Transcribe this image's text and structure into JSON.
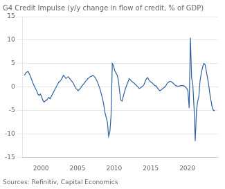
{
  "chart_data": {
    "type": "line",
    "title": "G4 Credit Impulse (y/y change in flow of credit, % of GDP)",
    "annotations": [
      "Sources: Refinitiv, Capital Economics"
    ],
    "color": "#3060A0",
    "grid": "y",
    "xlim": [
      1997.5,
      2024.2
    ],
    "xticks": [
      2000,
      2005,
      2010,
      2015,
      2020
    ],
    "ylim": [
      -15,
      15
    ],
    "yticks": [
      -15,
      -10,
      -5,
      0,
      5,
      10,
      15
    ],
    "x": [
      1997.75,
      1997.92,
      1998.08,
      1998.25,
      1998.42,
      1998.58,
      1998.75,
      1998.92,
      1999.08,
      1999.25,
      1999.42,
      1999.58,
      1999.75,
      1999.92,
      2000.08,
      2000.25,
      2000.42,
      2000.58,
      2000.75,
      2000.92,
      2001.08,
      2001.25,
      2001.42,
      2001.58,
      2001.75,
      2001.92,
      2002.08,
      2002.25,
      2002.42,
      2002.58,
      2002.75,
      2002.92,
      2003.08,
      2003.25,
      2003.42,
      2003.58,
      2003.75,
      2003.92,
      2004.08,
      2004.25,
      2004.42,
      2004.58,
      2004.75,
      2004.92,
      2005.08,
      2005.25,
      2005.42,
      2005.58,
      2005.75,
      2005.92,
      2006.08,
      2006.25,
      2006.42,
      2006.58,
      2006.75,
      2006.92,
      2007.08,
      2007.25,
      2007.42,
      2007.58,
      2007.75,
      2007.92,
      2008.08,
      2008.25,
      2008.42,
      2008.58,
      2008.75,
      2008.92,
      2009.08,
      2009.25,
      2009.42,
      2009.58,
      2009.75,
      2009.92,
      2010.08,
      2010.25,
      2010.42,
      2010.58,
      2010.75,
      2010.92,
      2011.08,
      2011.25,
      2011.42,
      2011.58,
      2011.75,
      2011.92,
      2012.08,
      2012.25,
      2012.42,
      2012.58,
      2012.75,
      2012.92,
      2013.08,
      2013.25,
      2013.42,
      2013.58,
      2013.75,
      2013.92,
      2014.08,
      2014.25,
      2014.42,
      2014.58,
      2014.75,
      2014.92,
      2015.08,
      2015.25,
      2015.42,
      2015.58,
      2015.75,
      2015.92,
      2016.08,
      2016.25,
      2016.42,
      2016.58,
      2016.75,
      2016.92,
      2017.08,
      2017.25,
      2017.42,
      2017.58,
      2017.75,
      2017.92,
      2018.08,
      2018.25,
      2018.42,
      2018.58,
      2018.75,
      2018.92,
      2019.08,
      2019.25,
      2019.42,
      2019.58,
      2019.75,
      2019.92,
      2020.08,
      2020.25,
      2020.42,
      2020.58,
      2020.75,
      2020.92,
      2021.08,
      2021.25,
      2021.42,
      2021.58,
      2021.75,
      2021.92,
      2022.08,
      2022.25,
      2022.42,
      2022.58,
      2022.75,
      2022.92,
      2023.08,
      2023.25,
      2023.42,
      2023.58,
      2023.75
    ],
    "values": [
      2.5,
      3.0,
      3.2,
      3.3,
      2.8,
      2.2,
      1.5,
      0.8,
      0.2,
      -0.3,
      -0.8,
      -1.5,
      -1.8,
      -1.5,
      -2.0,
      -2.8,
      -3.2,
      -3.0,
      -2.8,
      -2.5,
      -2.2,
      -2.5,
      -2.0,
      -1.5,
      -1.0,
      -0.5,
      0.0,
      0.5,
      1.0,
      1.2,
      1.5,
      2.0,
      2.5,
      2.2,
      1.8,
      2.0,
      2.2,
      1.8,
      1.5,
      1.2,
      0.8,
      0.3,
      -0.2,
      -0.5,
      -0.8,
      -0.5,
      -0.2,
      0.2,
      0.5,
      0.8,
      1.2,
      1.5,
      1.8,
      2.0,
      2.2,
      2.3,
      2.5,
      2.3,
      2.0,
      1.5,
      1.0,
      0.2,
      -0.5,
      -1.5,
      -2.5,
      -3.8,
      -5.5,
      -6.5,
      -7.5,
      -10.5,
      -9.5,
      -6.0,
      5.0,
      4.5,
      3.5,
      3.0,
      2.5,
      1.5,
      -1.0,
      -2.8,
      -3.0,
      -2.0,
      -1.0,
      -0.2,
      0.5,
      1.2,
      1.8,
      1.5,
      1.2,
      1.0,
      0.8,
      0.5,
      0.3,
      0.0,
      -0.3,
      -0.2,
      0.0,
      0.2,
      0.5,
      1.2,
      1.8,
      2.0,
      1.5,
      1.2,
      1.0,
      0.8,
      0.5,
      0.3,
      0.2,
      -0.2,
      -0.5,
      -0.8,
      -0.6,
      -0.4,
      -0.2,
      0.0,
      0.3,
      0.8,
      1.0,
      1.2,
      1.2,
      1.0,
      0.8,
      0.5,
      0.3,
      0.2,
      0.2,
      0.2,
      0.3,
      0.3,
      0.3,
      0.2,
      0.0,
      -0.3,
      -0.8,
      -4.5,
      10.5,
      2.0,
      0.5,
      -4.5,
      -11.5,
      -5.0,
      -3.0,
      -2.0,
      1.5,
      3.0,
      4.2,
      5.0,
      4.8,
      3.5,
      2.0,
      0.5,
      -1.5,
      -3.0,
      -4.5,
      -5.0,
      -5.0
    ]
  }
}
